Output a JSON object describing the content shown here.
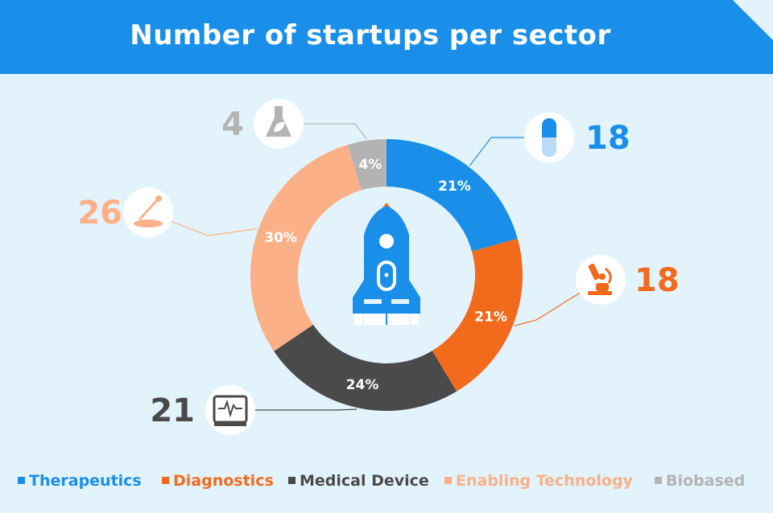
{
  "title": "Number of startups per sector",
  "colors": {
    "header": "#1a8fea",
    "background": "#e3f3fc",
    "rocket": "#1a8fea",
    "rocket_accent": "#f26a1b"
  },
  "chart_data": {
    "type": "pie",
    "variant": "donut",
    "title": "Number of startups per sector",
    "categories": [
      "Therapeutics",
      "Diagnostics",
      "Medical Device",
      "Enabling Technology",
      "Biobased"
    ],
    "values": [
      18,
      18,
      21,
      26,
      4
    ],
    "percent_labels": [
      "21%",
      "21%",
      "24%",
      "30%",
      "4%"
    ],
    "count_labels": [
      "18",
      "18",
      "21",
      "26",
      "4"
    ],
    "colors": [
      "#1a8fea",
      "#f26a1b",
      "#4a4a4a",
      "#fbb088",
      "#b3b3b3"
    ],
    "icons": [
      "pill-icon",
      "microscope-icon",
      "heart-monitor-icon",
      "pipette-dish-icon",
      "flask-leaf-icon"
    ],
    "center_icon": "rocket-icon",
    "legend_position": "bottom"
  }
}
